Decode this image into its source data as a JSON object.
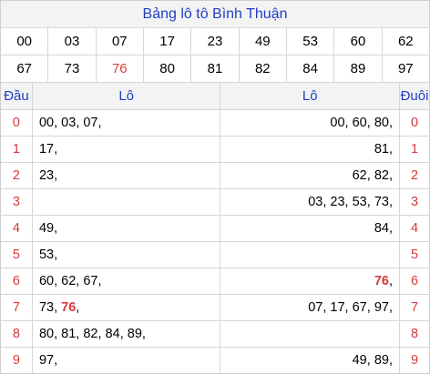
{
  "title": "Bảng lô tô Bình Thuận",
  "numbers": [
    {
      "v": "00",
      "hl": false
    },
    {
      "v": "03",
      "hl": false
    },
    {
      "v": "07",
      "hl": false
    },
    {
      "v": "17",
      "hl": false
    },
    {
      "v": "23",
      "hl": false
    },
    {
      "v": "49",
      "hl": false
    },
    {
      "v": "53",
      "hl": false
    },
    {
      "v": "60",
      "hl": false
    },
    {
      "v": "62",
      "hl": false
    },
    {
      "v": "67",
      "hl": false
    },
    {
      "v": "73",
      "hl": false
    },
    {
      "v": "76",
      "hl": true
    },
    {
      "v": "80",
      "hl": false
    },
    {
      "v": "81",
      "hl": false
    },
    {
      "v": "82",
      "hl": false
    },
    {
      "v": "84",
      "hl": false
    },
    {
      "v": "89",
      "hl": false
    },
    {
      "v": "97",
      "hl": false
    }
  ],
  "headers": {
    "head": "Đầu",
    "lo_left": "Lô",
    "lo_right": "Lô",
    "tail": "Đuôi"
  },
  "rows": [
    {
      "head": "0",
      "left": [
        {
          "v": "00",
          "hl": false
        },
        {
          "v": "03",
          "hl": false
        },
        {
          "v": "07",
          "hl": false
        }
      ],
      "right": [
        {
          "v": "00",
          "hl": false
        },
        {
          "v": "60",
          "hl": false
        },
        {
          "v": "80",
          "hl": false
        }
      ],
      "tail": "0"
    },
    {
      "head": "1",
      "left": [
        {
          "v": "17",
          "hl": false
        }
      ],
      "right": [
        {
          "v": "81",
          "hl": false
        }
      ],
      "tail": "1"
    },
    {
      "head": "2",
      "left": [
        {
          "v": "23",
          "hl": false
        }
      ],
      "right": [
        {
          "v": "62",
          "hl": false
        },
        {
          "v": "82",
          "hl": false
        }
      ],
      "tail": "2"
    },
    {
      "head": "3",
      "left": [],
      "right": [
        {
          "v": "03",
          "hl": false
        },
        {
          "v": "23",
          "hl": false
        },
        {
          "v": "53",
          "hl": false
        },
        {
          "v": "73",
          "hl": false
        }
      ],
      "tail": "3"
    },
    {
      "head": "4",
      "left": [
        {
          "v": "49",
          "hl": false
        }
      ],
      "right": [
        {
          "v": "84",
          "hl": false
        }
      ],
      "tail": "4"
    },
    {
      "head": "5",
      "left": [
        {
          "v": "53",
          "hl": false
        }
      ],
      "right": [],
      "tail": "5"
    },
    {
      "head": "6",
      "left": [
        {
          "v": "60",
          "hl": false
        },
        {
          "v": "62",
          "hl": false
        },
        {
          "v": "67",
          "hl": false
        }
      ],
      "right": [
        {
          "v": "76",
          "hl": true
        }
      ],
      "tail": "6"
    },
    {
      "head": "7",
      "left": [
        {
          "v": "73",
          "hl": false
        },
        {
          "v": "76",
          "hl": true
        }
      ],
      "right": [
        {
          "v": "07",
          "hl": false
        },
        {
          "v": "17",
          "hl": false
        },
        {
          "v": "67",
          "hl": false
        },
        {
          "v": "97",
          "hl": false
        }
      ],
      "tail": "7"
    },
    {
      "head": "8",
      "left": [
        {
          "v": "80",
          "hl": false
        },
        {
          "v": "81",
          "hl": false
        },
        {
          "v": "82",
          "hl": false
        },
        {
          "v": "84",
          "hl": false
        },
        {
          "v": "89",
          "hl": false
        }
      ],
      "right": [],
      "tail": "8"
    },
    {
      "head": "9",
      "left": [
        {
          "v": "97",
          "hl": false
        }
      ],
      "right": [
        {
          "v": "49",
          "hl": false
        },
        {
          "v": "89",
          "hl": false
        }
      ],
      "tail": "9"
    }
  ],
  "colors": {
    "title_text": "#1f3ec8",
    "head_digit": "#d93a3a",
    "highlight": "#d93a3a",
    "header_bg": "#f3f3f3"
  }
}
